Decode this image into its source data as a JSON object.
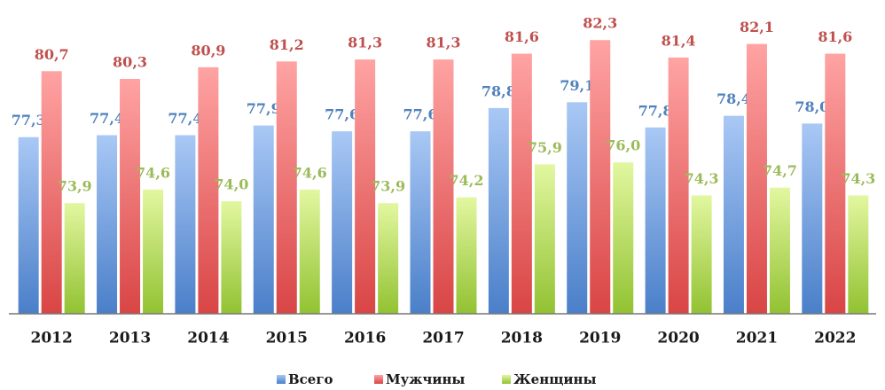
{
  "chart_data": {
    "type": "bar",
    "categories": [
      "2012",
      "2013",
      "2014",
      "2015",
      "2016",
      "2017",
      "2018",
      "2019",
      "2020",
      "2021",
      "2022"
    ],
    "series": [
      {
        "name": "Всего",
        "color": "#4f81bd",
        "values": [
          77.3,
          77.4,
          77.4,
          77.9,
          77.6,
          77.6,
          78.8,
          79.1,
          77.8,
          78.4,
          78.0
        ],
        "value_labels": [
          "77,3",
          "77,4",
          "77,4",
          "77,9",
          "77,6",
          "77,6",
          "78,8",
          "79,1",
          "77,8",
          "78,4",
          "78,0"
        ]
      },
      {
        "name": "Мужчины",
        "color": "#c0504d",
        "values": [
          80.7,
          80.3,
          80.9,
          81.2,
          81.3,
          81.3,
          81.6,
          82.3,
          81.4,
          82.1,
          81.6
        ],
        "value_labels": [
          "80,7",
          "80,3",
          "80,9",
          "81,2",
          "81,3",
          "81,3",
          "81,6",
          "82,3",
          "81,4",
          "82,1",
          "81,6"
        ]
      },
      {
        "name": "Женщины",
        "color": "#9bbb59",
        "values": [
          73.9,
          74.6,
          74.0,
          74.6,
          73.9,
          74.2,
          75.9,
          76.0,
          74.3,
          74.7,
          74.3
        ],
        "value_labels": [
          "73,9",
          "74,6",
          "74,0",
          "74,6",
          "73,9",
          "74,2",
          "75,9",
          "76,0",
          "74,3",
          "74,7",
          "74,3"
        ]
      }
    ],
    "ylim": [
      68.2,
      84
    ]
  }
}
